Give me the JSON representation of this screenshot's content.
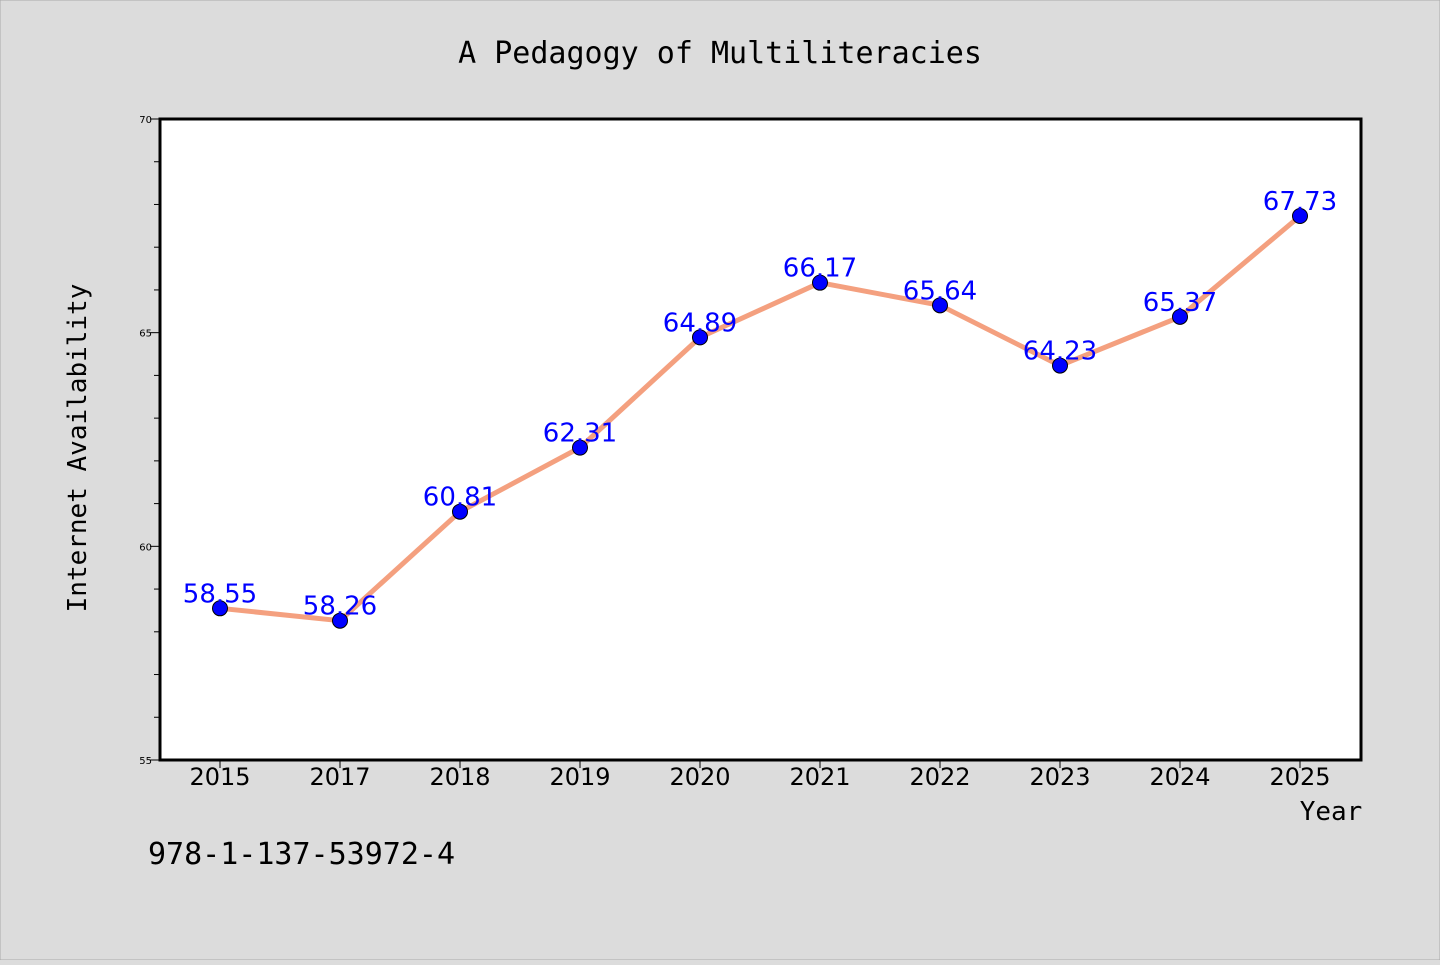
{
  "chart_data": {
    "type": "line",
    "title": "A Pedagogy of Multiliteracies",
    "xlabel": "Year",
    "ylabel": "Internet Availability",
    "categories": [
      "2015",
      "2017",
      "2018",
      "2019",
      "2020",
      "2021",
      "2022",
      "2023",
      "2024",
      "2025"
    ],
    "values": [
      58.55,
      58.26,
      60.81,
      62.31,
      64.89,
      66.17,
      65.64,
      64.23,
      65.37,
      67.73
    ],
    "data_labels": [
      "58.55",
      "58.26",
      "60.81",
      "62.31",
      "64.89",
      "66.17",
      "65.64",
      "64.23",
      "65.37",
      "67.73"
    ],
    "ylim": [
      55,
      70
    ],
    "y_ticks": [
      "55",
      "60",
      "65",
      "70"
    ],
    "grid": false,
    "legend": "none",
    "line_color": "#f4a07f",
    "marker_color": "#0000ff",
    "label_color": "#0000ff"
  },
  "footer_text": "978-1-137-53972-4"
}
